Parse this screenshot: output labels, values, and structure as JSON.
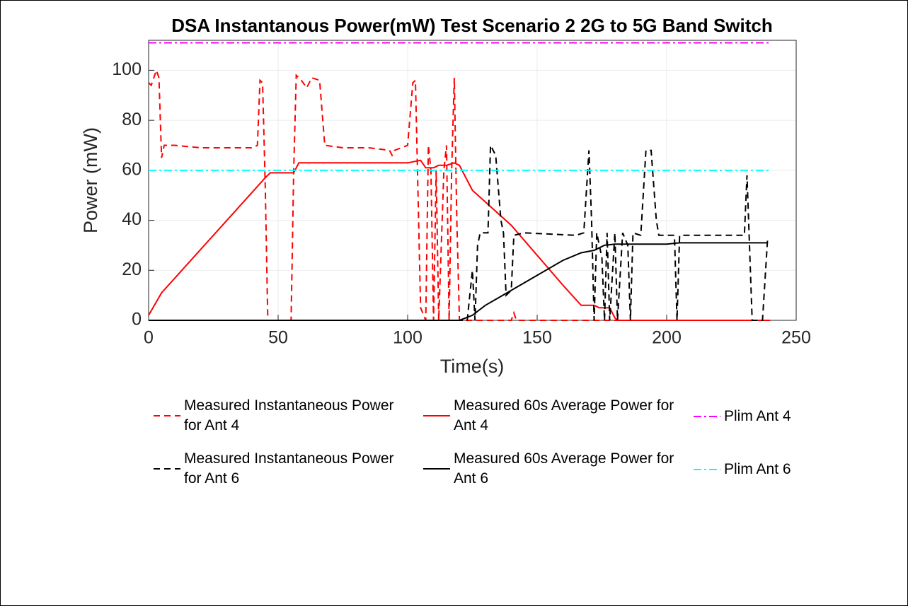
{
  "chart_data": {
    "type": "line",
    "title": "DSA Instantanous Power(mW) Test Scenario 2 2G to 5G Band Switch",
    "x_label": "Time(s)",
    "y_label": "Power (mW)",
    "xlim": [
      0,
      250
    ],
    "xticks": [
      0,
      50,
      100,
      150,
      200,
      250
    ],
    "ylim": [
      0,
      112
    ],
    "yticks": [
      0,
      20,
      40,
      60,
      80,
      100
    ],
    "grid": true,
    "series": [
      {
        "name": "Measured Instantaneous Power for Ant 4",
        "color": "#ff0000",
        "style": "dashed",
        "x": [
          0,
          1,
          2,
          3,
          4,
          5,
          6,
          10,
          20,
          30,
          40,
          42,
          43,
          44,
          45,
          46,
          55,
          56,
          57,
          59,
          61,
          63,
          66,
          68,
          75,
          85,
          93,
          94,
          95,
          100,
          102,
          103,
          105,
          107,
          108,
          109,
          110,
          111,
          112,
          114,
          115,
          116,
          117,
          118,
          119,
          120,
          140,
          141,
          142,
          180,
          240
        ],
        "values": [
          95,
          94,
          97,
          100,
          97,
          65,
          70,
          70,
          69,
          69,
          69,
          70,
          96,
          95,
          55,
          0,
          0,
          60,
          98,
          96,
          93,
          97,
          96,
          70,
          69,
          69,
          68,
          66,
          68,
          70,
          95,
          96,
          5,
          0,
          70,
          60,
          0,
          60,
          0,
          60,
          70,
          0,
          60,
          97,
          40,
          0,
          0,
          3,
          0,
          0,
          0
        ]
      },
      {
        "name": "Measured 60s Average Power for Ant 4",
        "color": "#ff0000",
        "style": "solid",
        "x": [
          0,
          5,
          45,
          47,
          56,
          58,
          65,
          100,
          105,
          107,
          110,
          112,
          115,
          118,
          120,
          125,
          140,
          160,
          167,
          172,
          174,
          178,
          180,
          181,
          240
        ],
        "values": [
          2,
          11,
          57,
          59,
          59,
          63,
          63,
          63,
          64,
          61,
          61,
          62,
          62,
          63,
          62,
          52,
          38,
          14,
          6,
          6,
          5,
          5,
          1,
          0,
          0
        ]
      },
      {
        "name": "Plim Ant 4",
        "color": "#ff00ff",
        "style": "dashdot",
        "x": [
          0,
          240
        ],
        "values": [
          111,
          111
        ]
      },
      {
        "name": "Measured Instantaneous Power for Ant 6",
        "color": "#000000",
        "style": "dashed",
        "x": [
          0,
          123,
          124,
          125,
          126,
          127,
          128,
          131,
          132,
          134,
          136,
          137,
          138,
          140,
          141,
          145,
          165,
          168,
          170,
          171,
          172,
          173,
          175,
          176,
          177,
          178,
          180,
          181,
          183,
          185,
          186,
          187,
          190,
          192,
          194,
          196,
          197,
          203,
          204,
          205,
          230,
          231,
          233,
          237,
          239
        ],
        "values": [
          0,
          0,
          10,
          20,
          0,
          30,
          35,
          35,
          70,
          66,
          40,
          35,
          10,
          12,
          34,
          35,
          34,
          35,
          68,
          40,
          0,
          35,
          25,
          0,
          35,
          0,
          35,
          0,
          35,
          30,
          0,
          35,
          34,
          68,
          68,
          40,
          34,
          34,
          0,
          34,
          34,
          58,
          0,
          0,
          33
        ]
      },
      {
        "name": "Measured 60s Average Power for Ant 6",
        "color": "#000000",
        "style": "solid",
        "x": [
          0,
          120,
          125,
          130,
          135,
          140,
          145,
          160,
          167,
          172,
          176,
          180,
          200,
          205,
          230,
          239
        ],
        "values": [
          0,
          0,
          2,
          6,
          9,
          12,
          15,
          24,
          27,
          28,
          30,
          30.5,
          30.5,
          31,
          31,
          31
        ]
      },
      {
        "name": "Plim Ant 6",
        "color": "#00ffff",
        "style": "dashdot",
        "x": [
          0,
          240
        ],
        "values": [
          60,
          60
        ]
      }
    ]
  }
}
